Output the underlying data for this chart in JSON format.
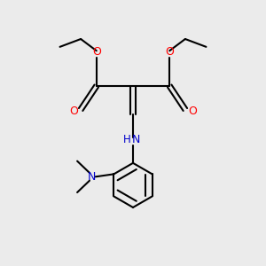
{
  "background_color": "#ebebeb",
  "bond_color": "#000000",
  "oxygen_color": "#ff0000",
  "nitrogen_color": "#0000cc",
  "line_width": 1.5,
  "figsize": [
    3.0,
    3.0
  ],
  "dpi": 100,
  "xlim": [
    0,
    10
  ],
  "ylim": [
    0,
    10
  ]
}
